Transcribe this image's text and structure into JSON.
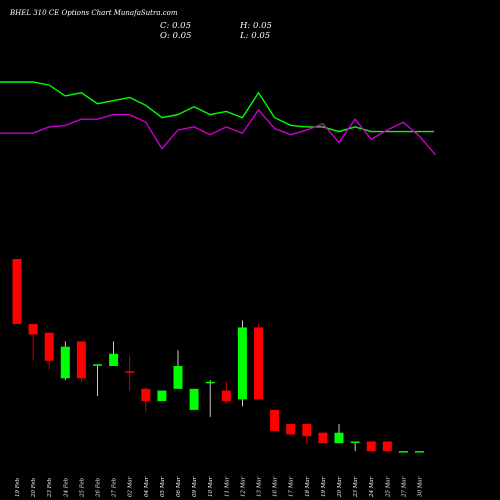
{
  "chart_data": {
    "type": "candlestick",
    "title": "BHEL 310 CE Options Chart MunafaSutra.com",
    "ohlc_labels": {
      "close": "C: 0.05",
      "high": "H: 0.05",
      "open": "O: 0.05",
      "low": "L: 0.05"
    },
    "categories": [
      "19 Feb",
      "20 Feb",
      "23 Feb",
      "24 Feb",
      "25 Feb",
      "26 Feb",
      "27 Feb",
      "02 Mar",
      "04 Mar",
      "05 Mar",
      "06 Mar",
      "09 Mar",
      "10 Mar",
      "11 Mar",
      "12 Mar",
      "13 Mar",
      "16 Mar",
      "17 Mar",
      "18 Mar",
      "19 Mar",
      "20 Mar",
      "23 Mar",
      "24 Mar",
      "25 Mar",
      "27 Mar",
      "30 Mar"
    ],
    "price_range": [
      0,
      11
    ],
    "candles": [
      {
        "o": 11.0,
        "h": 11.0,
        "l": 7.3,
        "c": 7.3,
        "color": "red"
      },
      {
        "o": 7.3,
        "h": 7.3,
        "l": 5.2,
        "c": 6.7,
        "color": "red"
      },
      {
        "o": 6.8,
        "h": 6.8,
        "l": 4.7,
        "c": 5.2,
        "color": "red"
      },
      {
        "o": 4.2,
        "h": 6.3,
        "l": 4.1,
        "c": 6.0,
        "color": "green"
      },
      {
        "o": 6.3,
        "h": 6.3,
        "l": 4.0,
        "c": 4.2,
        "color": "red"
      },
      {
        "o": 5.0,
        "h": 5.0,
        "l": 3.2,
        "c": 5.0,
        "color": "green"
      },
      {
        "o": 4.9,
        "h": 6.3,
        "l": 4.9,
        "c": 5.6,
        "color": "green"
      },
      {
        "o": 4.6,
        "h": 5.5,
        "l": 3.5,
        "c": 4.6,
        "color": "red"
      },
      {
        "o": 3.6,
        "h": 3.7,
        "l": 2.3,
        "c": 2.9,
        "color": "red"
      },
      {
        "o": 2.9,
        "h": 3.5,
        "l": 2.9,
        "c": 3.5,
        "color": "green"
      },
      {
        "o": 3.6,
        "h": 5.8,
        "l": 3.6,
        "c": 4.9,
        "color": "green"
      },
      {
        "o": 2.4,
        "h": 3.6,
        "l": 2.4,
        "c": 3.6,
        "color": "green"
      },
      {
        "o": 4.0,
        "h": 4.1,
        "l": 2.0,
        "c": 4.0,
        "color": "green"
      },
      {
        "o": 3.5,
        "h": 4.0,
        "l": 2.8,
        "c": 2.9,
        "color": "red"
      },
      {
        "o": 3.0,
        "h": 7.5,
        "l": 2.6,
        "c": 7.1,
        "color": "green"
      },
      {
        "o": 7.1,
        "h": 7.3,
        "l": 3.0,
        "c": 3.0,
        "color": "red"
      },
      {
        "o": 2.4,
        "h": 2.4,
        "l": 1.2,
        "c": 1.2,
        "color": "red"
      },
      {
        "o": 1.6,
        "h": 1.6,
        "l": 1.0,
        "c": 1.0,
        "color": "red"
      },
      {
        "o": 1.6,
        "h": 1.6,
        "l": 0.5,
        "c": 0.9,
        "color": "red"
      },
      {
        "o": 1.1,
        "h": 1.1,
        "l": 0.5,
        "c": 0.5,
        "color": "red"
      },
      {
        "o": 0.5,
        "h": 1.6,
        "l": 0.5,
        "c": 1.1,
        "color": "green"
      },
      {
        "o": 0.6,
        "h": 0.6,
        "l": 0.05,
        "c": 0.55,
        "color": "green"
      },
      {
        "o": 0.6,
        "h": 0.6,
        "l": 0.05,
        "c": 0.05,
        "color": "red"
      },
      {
        "o": 0.6,
        "h": 0.6,
        "l": 0.05,
        "c": 0.05,
        "color": "red"
      },
      {
        "o": 0.05,
        "h": 0.05,
        "l": 0.05,
        "c": 0.05,
        "color": "green"
      },
      {
        "o": 0.05,
        "h": 0.05,
        "l": 0.05,
        "c": 0.05,
        "color": "green"
      }
    ],
    "overlay_range": [
      0,
      100
    ],
    "series": [
      {
        "color": "#00ff00",
        "values": [
          80.0,
          80.0,
          79.0,
          75.5,
          76.5,
          73.0,
          74.0,
          75.0,
          72.5,
          68.5,
          69.5,
          72.0,
          69.5,
          70.5,
          68.5,
          76.5,
          68.5,
          66.0,
          65.5,
          65.5,
          64.0,
          65.5,
          64.0,
          64.0,
          64.0,
          64.0
        ]
      },
      {
        "color": "#cc00cc",
        "values": [
          63.5,
          63.5,
          65.5,
          66.0,
          68.0,
          68.0,
          69.5,
          69.5,
          67.0,
          58.5,
          64.5,
          65.5,
          63.0,
          65.5,
          63.5,
          71.0,
          65.0,
          63.0,
          64.5,
          66.5,
          60.5,
          68.0,
          61.5,
          64.5,
          67.0,
          62.5
        ]
      }
    ],
    "series_extra_points": [
      {
        "series": 1,
        "value": 56.5
      }
    ]
  }
}
